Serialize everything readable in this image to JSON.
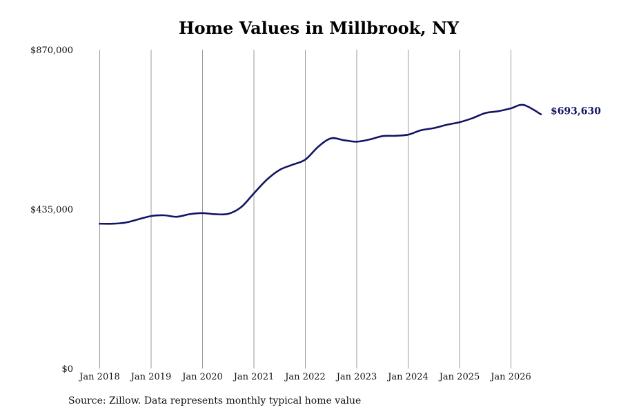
{
  "chart_data": {
    "type": "line",
    "title": "Home Values in Millbrook, NY",
    "xlabel": "",
    "ylabel": "",
    "ylim": [
      0,
      870000
    ],
    "xlim": [
      "2018-01",
      "2026-08"
    ],
    "grid": "vertical",
    "y_ticks": [
      "$0",
      "$435,000",
      "$870,000"
    ],
    "x_ticks": [
      "Jan 2018",
      "Jan 2019",
      "Jan 2020",
      "Jan 2021",
      "Jan 2022",
      "Jan 2023",
      "Jan 2024",
      "Jan 2025",
      "Jan 2026"
    ],
    "end_label": "$693,630",
    "line_color": "#141464",
    "series": [
      {
        "x": [
          "2018-01",
          "2018-04",
          "2018-07",
          "2018-10",
          "2019-01",
          "2019-04",
          "2019-07",
          "2019-10",
          "2020-01",
          "2020-04",
          "2020-07",
          "2020-10",
          "2021-01",
          "2021-04",
          "2021-07",
          "2021-10",
          "2022-01",
          "2022-04",
          "2022-07",
          "2022-10",
          "2023-01",
          "2023-04",
          "2023-07",
          "2023-10",
          "2024-01",
          "2024-04",
          "2024-07",
          "2024-10",
          "2025-01",
          "2025-04",
          "2025-07",
          "2025-10",
          "2026-01",
          "2026-04",
          "2026-08"
        ],
        "y": [
          395000,
          395000,
          398000,
          407000,
          416000,
          418000,
          414000,
          421000,
          424000,
          421000,
          422000,
          440000,
          478000,
          515000,
          542000,
          556000,
          570000,
          605000,
          628000,
          623000,
          619000,
          625000,
          634000,
          635000,
          638000,
          650000,
          656000,
          665000,
          672000,
          683000,
          697000,
          702000,
          710000,
          719000,
          693630
        ]
      }
    ]
  },
  "source_text": "Source: Zillow. Data represents monthly typical home value"
}
